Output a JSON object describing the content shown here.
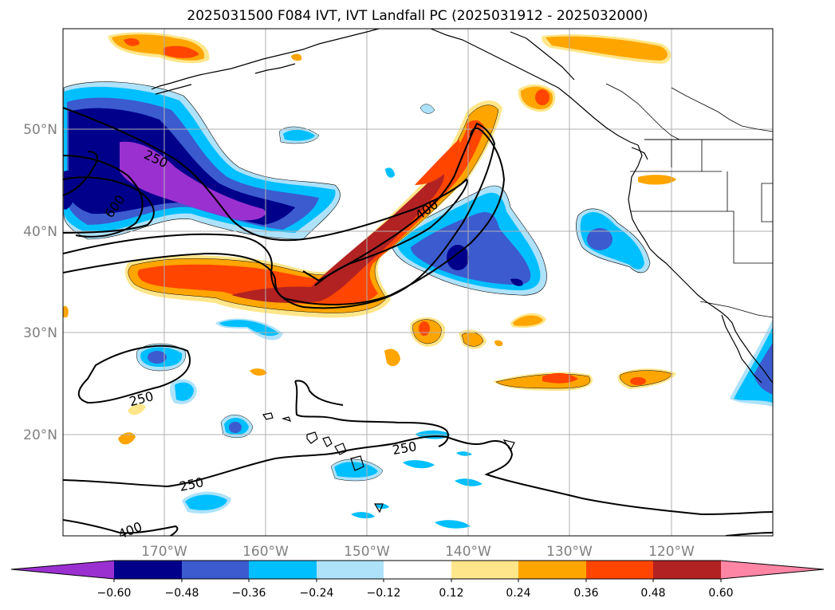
{
  "title": "2025031500 F084 IVT, IVT Landfall PC (2025031912 - 2025032000)",
  "axes": {
    "lat_labels": [
      "50°N",
      "40°N",
      "30°N",
      "20°N"
    ],
    "lon_labels": [
      "170°W",
      "160°W",
      "150°W",
      "140°W",
      "130°W",
      "120°W"
    ]
  },
  "contour_labels": [
    "250",
    "600",
    "400",
    "250",
    "250",
    "250",
    "400"
  ],
  "colorbar": {
    "ticks": [
      "−0.60",
      "−0.48",
      "−0.36",
      "−0.24",
      "−0.12",
      "0.12",
      "0.24",
      "0.36",
      "0.48",
      "0.60"
    ],
    "colors": [
      "#9b30d0",
      "#00008b",
      "#3b5bcf",
      "#00bfff",
      "#aee2fb",
      "#ffffff",
      "#ffe68a",
      "#ffa500",
      "#ff4500",
      "#b22222",
      "#ff85a5"
    ]
  }
}
